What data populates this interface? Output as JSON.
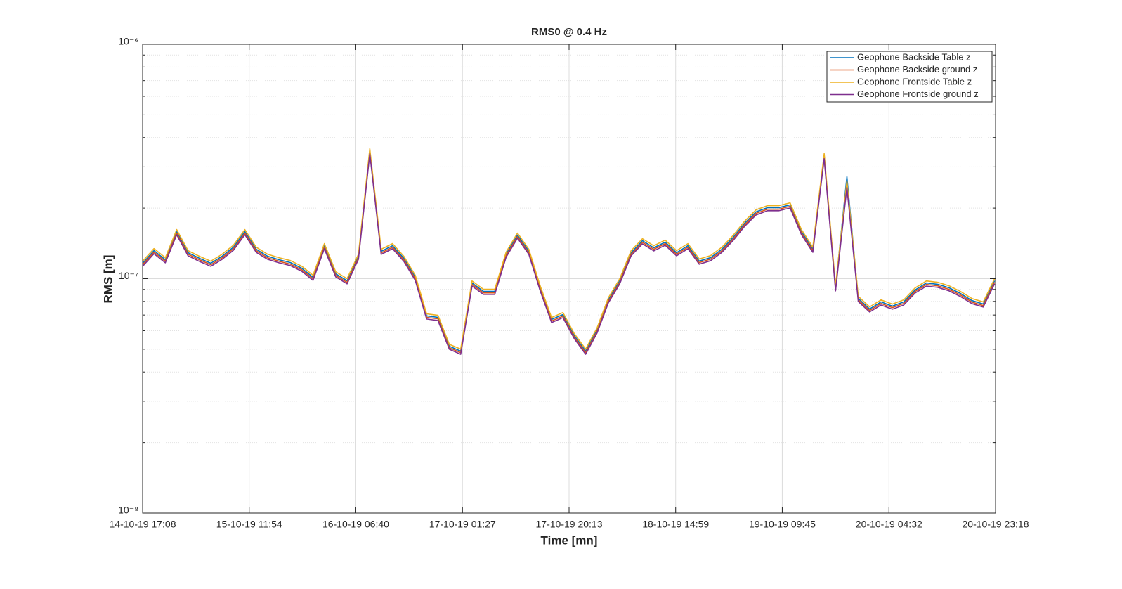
{
  "chart_data": {
    "type": "line",
    "title": "RMS0 @ 0.4 Hz",
    "x_label": "Time [mn]",
    "y_label": "RMS [m]",
    "log_y": true,
    "grid": true,
    "minor_grid": true,
    "legend_position": "top-right",
    "x": [
      "14-10-19 17:08",
      "14-10-19 19:08",
      "14-10-19 21:08",
      "14-10-19 23:08",
      "15-10-19 01:08",
      "15-10-19 03:08",
      "15-10-19 05:08",
      "15-10-19 07:08",
      "15-10-19 09:08",
      "15-10-19 11:08",
      "15-10-19 13:08",
      "15-10-19 15:08",
      "15-10-19 17:08",
      "15-10-19 19:08",
      "15-10-19 21:08",
      "15-10-19 23:08",
      "16-10-19 01:08",
      "16-10-19 03:08",
      "16-10-19 05:08",
      "16-10-19 07:08",
      "16-10-19 09:08",
      "16-10-19 11:08",
      "16-10-19 13:08",
      "16-10-19 15:08",
      "16-10-19 17:08",
      "16-10-19 19:08",
      "16-10-19 21:08",
      "16-10-19 23:08",
      "17-10-19 01:08",
      "17-10-19 03:08",
      "17-10-19 05:08",
      "17-10-19 07:08",
      "17-10-19 09:08",
      "17-10-19 11:08",
      "17-10-19 13:08",
      "17-10-19 15:08",
      "17-10-19 17:08",
      "17-10-19 19:08",
      "17-10-19 21:08",
      "17-10-19 23:08",
      "18-10-19 01:08",
      "18-10-19 03:08",
      "18-10-19 05:08",
      "18-10-19 07:08",
      "18-10-19 09:08",
      "18-10-19 11:08",
      "18-10-19 13:08",
      "18-10-19 15:08",
      "18-10-19 17:08",
      "18-10-19 19:08",
      "18-10-19 21:08",
      "18-10-19 23:08",
      "19-10-19 01:08",
      "19-10-19 03:08",
      "19-10-19 05:08",
      "19-10-19 07:08",
      "19-10-19 09:08",
      "19-10-19 11:08",
      "19-10-19 13:08",
      "19-10-19 15:08",
      "19-10-19 17:08",
      "19-10-19 19:08",
      "19-10-19 21:08",
      "19-10-19 23:08",
      "20-10-19 01:08",
      "20-10-19 03:08",
      "20-10-19 05:08",
      "20-10-19 07:08",
      "20-10-19 09:08",
      "20-10-19 11:08",
      "20-10-19 13:08",
      "20-10-19 15:08",
      "20-10-19 17:08",
      "20-10-19 19:08",
      "20-10-19 21:08",
      "20-10-19 23:08"
    ],
    "series": [
      {
        "name": "Geophone Backside Table z",
        "color": "#0072BD",
        "values": [
          1.164e-07,
          1.318e-07,
          1.205e-07,
          1.588e-07,
          1.291e-07,
          1.222e-07,
          1.164e-07,
          1.247e-07,
          1.364e-07,
          1.588e-07,
          1.336e-07,
          1.247e-07,
          1.205e-07,
          1.172e-07,
          1.109e-07,
          1.014e-07,
          1.383e-07,
          1.049e-07,
          9.8e-08,
          1.247e-07,
          3.516e-07,
          1.309e-07,
          1.383e-07,
          1.222e-07,
          1.014e-07,
          6.94e-08,
          6.84e-08,
          5.15e-08,
          4.91e-08,
          9.59e-08,
          8.83e-08,
          8.83e-08,
          1.274e-07,
          1.535e-07,
          1.309e-07,
          9.14e-08,
          6.7e-08,
          7.03e-08,
          5.72e-08,
          4.91e-08,
          6.04e-08,
          8.13e-08,
          9.8e-08,
          1.291e-07,
          1.452e-07,
          1.355e-07,
          1.432e-07,
          1.291e-07,
          1.383e-07,
          1.189e-07,
          1.23e-07,
          1.336e-07,
          1.503e-07,
          1.726e-07,
          1.928e-07,
          2.009e-07,
          2.009e-07,
          2.065e-07,
          1.588e-07,
          1.336e-07,
          3.35e-07,
          9.14e-08,
          2.723e-07,
          8.24e-08,
          7.43e-08,
          7.96e-08,
          7.64e-08,
          7.96e-08,
          8.95e-08,
          9.59e-08,
          9.46e-08,
          9.14e-08,
          8.65e-08,
          8.07e-08,
          7.8e-08,
          9.8e-08
        ]
      },
      {
        "name": "Geophone Backside ground z",
        "color": "#D95319",
        "values": [
          1.147e-07,
          1.298e-07,
          1.187e-07,
          1.564e-07,
          1.272e-07,
          1.204e-07,
          1.147e-07,
          1.228e-07,
          1.344e-07,
          1.564e-07,
          1.316e-07,
          1.228e-07,
          1.187e-07,
          1.154e-07,
          1.092e-07,
          9.99e-08,
          1.362e-07,
          1.033e-07,
          9.65e-08,
          1.228e-07,
          3.463e-07,
          1.289e-07,
          1.362e-07,
          1.204e-07,
          9.99e-08,
          6.84e-08,
          6.74e-08,
          5.07e-08,
          4.84e-08,
          9.45e-08,
          8.7e-08,
          8.7e-08,
          1.255e-07,
          1.512e-07,
          1.289e-07,
          9e-08,
          6.6e-08,
          6.92e-08,
          5.63e-08,
          4.84e-08,
          5.95e-08,
          8.01e-08,
          9.65e-08,
          1.272e-07,
          1.43e-07,
          1.335e-07,
          1.411e-07,
          1.272e-07,
          1.362e-07,
          1.171e-07,
          1.212e-07,
          1.316e-07,
          1.48e-07,
          1.7e-07,
          1.899e-07,
          1.979e-07,
          1.979e-07,
          2.034e-07,
          1.564e-07,
          1.316e-07,
          3.3e-07,
          9e-08,
          2.55e-07,
          8.12e-08,
          7.32e-08,
          7.84e-08,
          7.53e-08,
          7.84e-08,
          8.82e-08,
          9.45e-08,
          9.32e-08,
          9e-08,
          8.52e-08,
          7.95e-08,
          7.68e-08,
          9.65e-08
        ]
      },
      {
        "name": "Geophone Frontside Table z",
        "color": "#EDB120",
        "values": [
          1.187e-07,
          1.344e-07,
          1.229e-07,
          1.62e-07,
          1.317e-07,
          1.246e-07,
          1.187e-07,
          1.272e-07,
          1.391e-07,
          1.62e-07,
          1.363e-07,
          1.272e-07,
          1.229e-07,
          1.195e-07,
          1.131e-07,
          1.034e-07,
          1.411e-07,
          1.07e-07,
          1e-07,
          1.272e-07,
          3.586e-07,
          1.335e-07,
          1.411e-07,
          1.246e-07,
          1.034e-07,
          7.08e-08,
          6.98e-08,
          5.25e-08,
          5.01e-08,
          9.78e-08,
          9.01e-08,
          9.01e-08,
          1.299e-07,
          1.566e-07,
          1.335e-07,
          9.32e-08,
          6.83e-08,
          7.17e-08,
          5.83e-08,
          5.01e-08,
          6.16e-08,
          8.29e-08,
          1e-07,
          1.317e-07,
          1.481e-07,
          1.382e-07,
          1.461e-07,
          1.317e-07,
          1.411e-07,
          1.213e-07,
          1.255e-07,
          1.363e-07,
          1.533e-07,
          1.761e-07,
          1.967e-07,
          2.049e-07,
          2.049e-07,
          2.106e-07,
          1.62e-07,
          1.363e-07,
          3.417e-07,
          9.32e-08,
          2.6e-07,
          8.4e-08,
          7.58e-08,
          8.12e-08,
          7.79e-08,
          8.12e-08,
          9.13e-08,
          9.78e-08,
          9.65e-08,
          9.32e-08,
          8.82e-08,
          8.23e-08,
          7.96e-08,
          1e-07
        ]
      },
      {
        "name": "Geophone Frontside ground z",
        "color": "#7E2F8E",
        "values": [
          1.129e-07,
          1.278e-07,
          1.169e-07,
          1.54e-07,
          1.252e-07,
          1.185e-07,
          1.129e-07,
          1.21e-07,
          1.323e-07,
          1.54e-07,
          1.296e-07,
          1.21e-07,
          1.169e-07,
          1.137e-07,
          1.076e-07,
          9.84e-08,
          1.342e-07,
          1.018e-07,
          9.51e-08,
          1.21e-07,
          3.411e-07,
          1.27e-07,
          1.342e-07,
          1.185e-07,
          9.84e-08,
          6.73e-08,
          6.63e-08,
          5e-08,
          4.76e-08,
          9.3e-08,
          8.57e-08,
          8.57e-08,
          1.236e-07,
          1.489e-07,
          1.27e-07,
          8.87e-08,
          6.5e-08,
          6.82e-08,
          5.55e-08,
          4.76e-08,
          5.86e-08,
          7.89e-08,
          9.51e-08,
          1.252e-07,
          1.408e-07,
          1.314e-07,
          1.389e-07,
          1.252e-07,
          1.342e-07,
          1.153e-07,
          1.193e-07,
          1.296e-07,
          1.458e-07,
          1.674e-07,
          1.87e-07,
          1.949e-07,
          1.949e-07,
          2.003e-07,
          1.54e-07,
          1.296e-07,
          3.25e-07,
          8.87e-08,
          2.45e-07,
          7.99e-08,
          7.21e-08,
          7.72e-08,
          7.41e-08,
          7.72e-08,
          8.68e-08,
          9.3e-08,
          9.18e-08,
          8.87e-08,
          8.39e-08,
          7.83e-08,
          7.57e-08,
          9.51e-08
        ]
      }
    ],
    "xlim": [
      "14-10-19 17:08",
      "20-10-19 23:18"
    ],
    "xticks": [
      "14-10-19 17:08",
      "15-10-19 11:54",
      "16-10-19 06:40",
      "17-10-19 01:27",
      "17-10-19 20:13",
      "18-10-19 14:59",
      "19-10-19 09:45",
      "20-10-19 04:32",
      "20-10-19 23:18"
    ],
    "ylim": [
      1e-08,
      1e-06
    ],
    "yticks": [
      {
        "value": 1e-08,
        "label": "10⁻⁸"
      },
      {
        "value": 1e-07,
        "label": "10⁻⁷"
      },
      {
        "value": 1e-06,
        "label": "10⁻⁶"
      }
    ],
    "yminor": [
      2e-08,
      3e-08,
      4e-08,
      5e-08,
      6e-08,
      7e-08,
      8e-08,
      9e-08,
      2e-07,
      3e-07,
      4e-07,
      5e-07,
      6e-07,
      7e-07,
      8e-07,
      9e-07
    ]
  }
}
